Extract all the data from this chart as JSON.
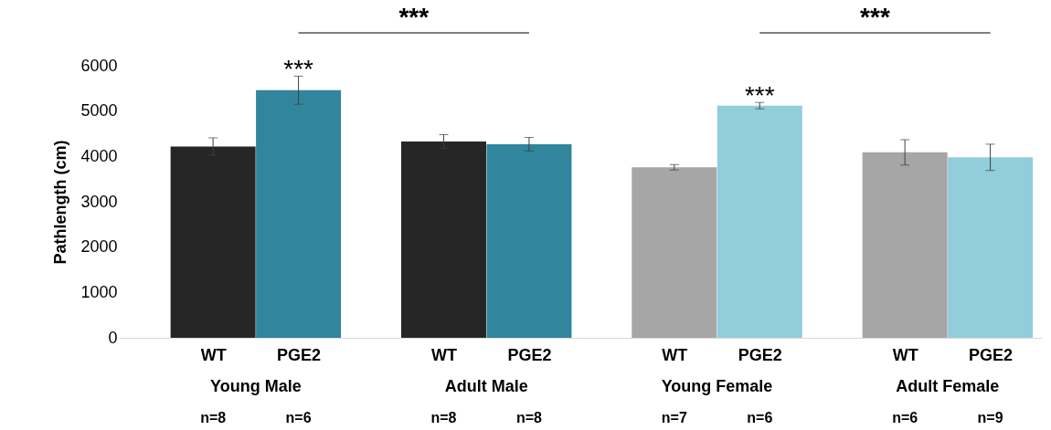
{
  "chart_data": {
    "type": "bar",
    "ylabel": "Pathlength (cm)",
    "categories": [
      "WT",
      "PGE2",
      "WT",
      "PGE2",
      "WT",
      "PGE2",
      "WT",
      "PGE2"
    ],
    "values": [
      4220,
      5460,
      4330,
      4270,
      3760,
      5120,
      4090,
      3980
    ],
    "errors": [
      190,
      310,
      150,
      150,
      60,
      70,
      280,
      290
    ],
    "colors": [
      "#262626",
      "#31859c",
      "#262626",
      "#31859c",
      "#a6a6a6",
      "#92cddc",
      "#a6a6a6",
      "#92cddc"
    ],
    "ylim": [
      0,
      6000
    ],
    "yticks": [
      0,
      1000,
      2000,
      3000,
      4000,
      5000,
      6000
    ],
    "grid": false,
    "annotations": [
      "Young Male",
      "Adult Male",
      "Young Female",
      "Adult Female",
      "n=8",
      "n=6",
      "n=8",
      "n=8",
      "n=7",
      "n=6",
      "n=6",
      "n=9",
      "***",
      "***",
      "***",
      "***"
    ]
  }
}
